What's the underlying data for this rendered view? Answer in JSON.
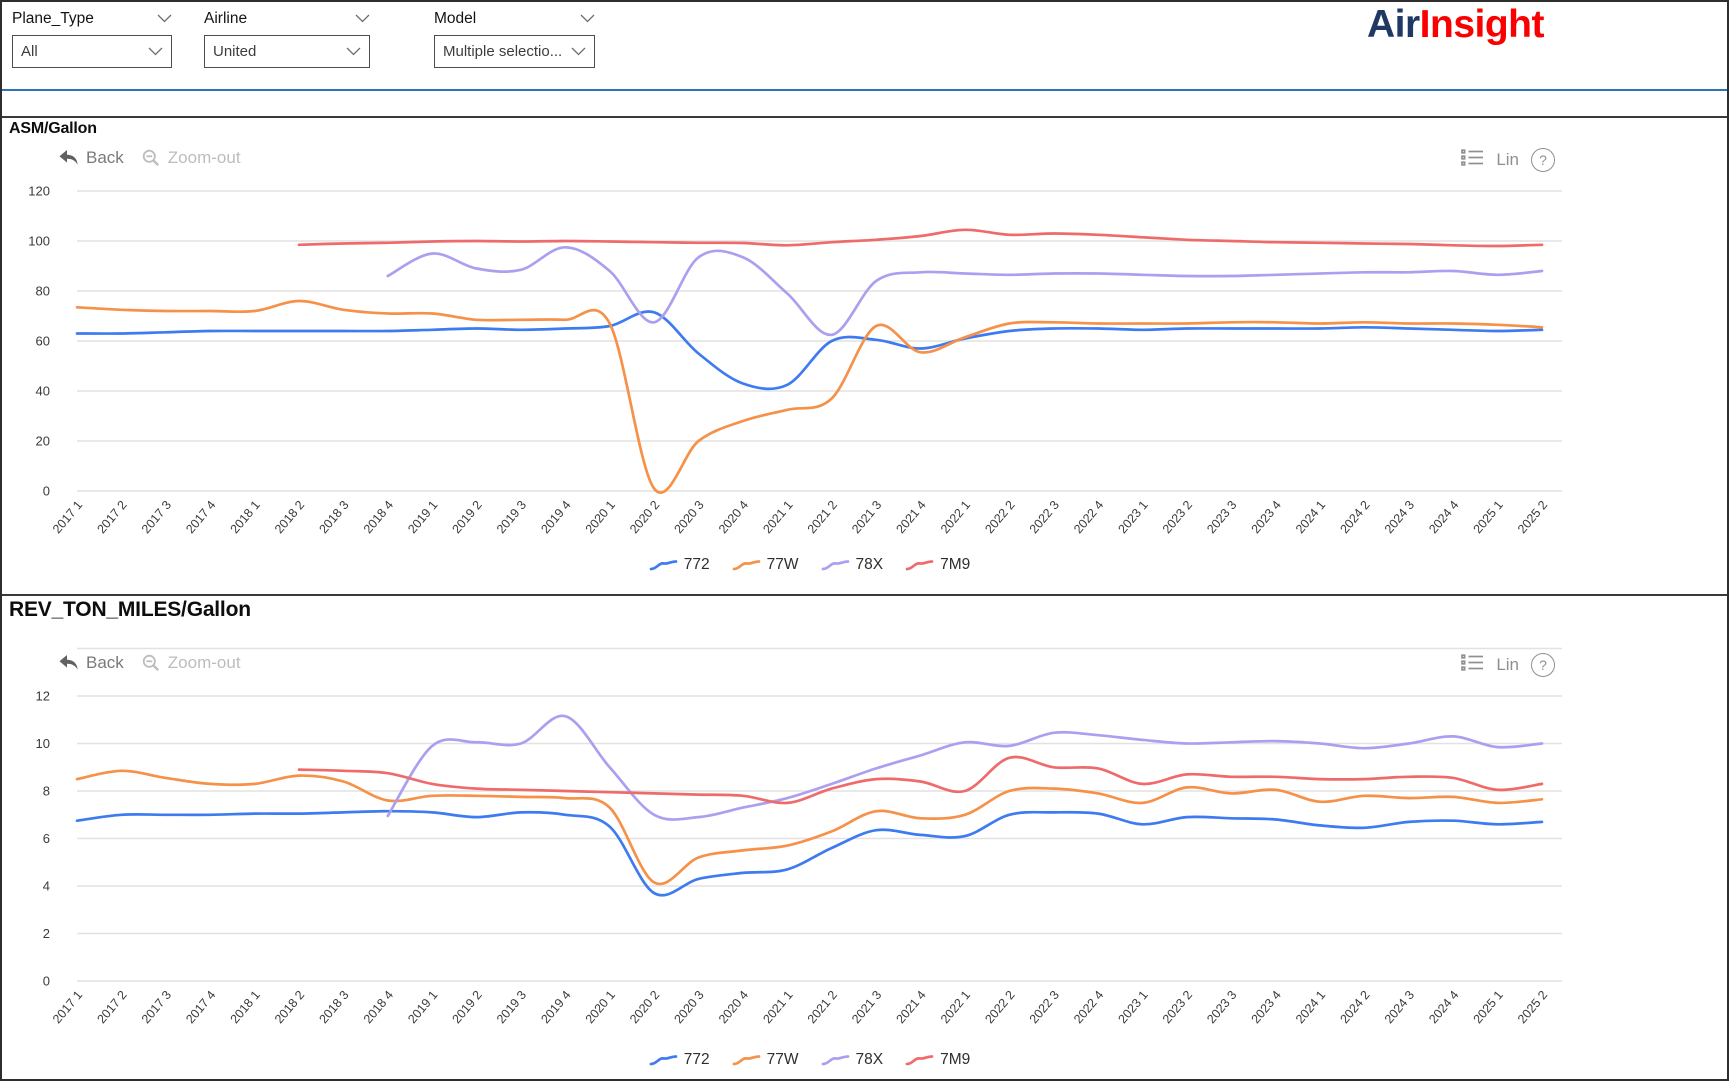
{
  "brand": {
    "logo_part1": "Air",
    "logo_part2": "Insight",
    "logo_color1": "#1F3864",
    "logo_color2": "#FB0000",
    "divider_color": "#2E74B5"
  },
  "filters": [
    {
      "label": "Plane_Type",
      "value": "All"
    },
    {
      "label": "Airline",
      "value": "United"
    },
    {
      "label": "Model",
      "value": "Multiple selectio..."
    }
  ],
  "chart_toolbar": {
    "back": "Back",
    "zoom_out": "Zoom-out",
    "lin": "Lin",
    "help": "?"
  },
  "chart_data": [
    {
      "type": "line",
      "title": "ASM/Gallon",
      "xlabel": "",
      "ylabel": "",
      "ylim": [
        0,
        120
      ],
      "yticks": [
        0,
        20,
        40,
        60,
        80,
        100,
        120
      ],
      "grid": true,
      "legend_position": "bottom",
      "categories": [
        "2017 1",
        "2017 2",
        "2017 3",
        "2017 4",
        "2018 1",
        "2018 2",
        "2018 3",
        "2018 4",
        "2019 1",
        "2019 2",
        "2019 3",
        "2019 4",
        "2020 1",
        "2020 2",
        "2020 3",
        "2020 4",
        "2021 1",
        "2021 2",
        "2021 3",
        "2021 4",
        "2022 1",
        "2022 2",
        "2022 3",
        "2022 4",
        "2023 1",
        "2023 2",
        "2023 3",
        "2023 4",
        "2024 1",
        "2024 2",
        "2024 3",
        "2024 4",
        "2025 1",
        "2025 2"
      ],
      "series": [
        {
          "name": "772",
          "color": "#3e7bf0",
          "values": [
            63,
            63,
            63.5,
            64,
            64,
            64,
            64,
            64,
            64.5,
            65,
            64.5,
            65,
            66,
            71.5,
            55,
            43,
            42.5,
            60,
            60.5,
            57,
            61,
            64,
            65,
            65,
            64.5,
            65,
            65,
            65,
            65,
            65.5,
            65,
            64.5,
            64,
            64.5
          ]
        },
        {
          "name": "77W",
          "color": "#f59148",
          "values": [
            73.5,
            72.5,
            72,
            72,
            72,
            76,
            72.5,
            71,
            71,
            68.5,
            68.5,
            68.5,
            67,
            1,
            20,
            28,
            32.5,
            37,
            66,
            55.5,
            61.5,
            67,
            67.5,
            67,
            67,
            67,
            67.5,
            67.5,
            67,
            67.5,
            67,
            67,
            66.5,
            65.5
          ]
        },
        {
          "name": "78X",
          "color": "#aba0f0",
          "values": [
            null,
            null,
            null,
            null,
            null,
            null,
            null,
            86,
            95,
            89,
            88.5,
            97.5,
            88,
            67.5,
            93.5,
            93.5,
            79,
            62.5,
            84,
            87.5,
            87,
            86.5,
            87,
            87,
            86.5,
            86,
            86,
            86.5,
            87,
            87.5,
            87.5,
            88,
            86.5,
            88
          ]
        },
        {
          "name": "7M9",
          "color": "#ef6b6b",
          "values": [
            null,
            null,
            null,
            null,
            null,
            98.5,
            99,
            99.3,
            99.8,
            100,
            99.8,
            100,
            99.8,
            99.5,
            99.3,
            99.2,
            98.3,
            99.5,
            100.5,
            102,
            104.5,
            102.5,
            103,
            102.5,
            101.5,
            100.5,
            100,
            99.5,
            99.3,
            99,
            98.8,
            98.3,
            98,
            98.5
          ]
        }
      ]
    },
    {
      "type": "line",
      "title": "REV_TON_MILES/Gallon",
      "xlabel": "",
      "ylabel": "",
      "ylim": [
        0,
        12
      ],
      "yticks": [
        0,
        2,
        4,
        6,
        8,
        10,
        12
      ],
      "grid": true,
      "legend_position": "bottom",
      "categories": [
        "2017 1",
        "2017 2",
        "2017 3",
        "2017 4",
        "2018 1",
        "2018 2",
        "2018 3",
        "2018 4",
        "2019 1",
        "2019 2",
        "2019 3",
        "2019 4",
        "2020 1",
        "2020 2",
        "2020 3",
        "2020 4",
        "2021 1",
        "2021 2",
        "2021 3",
        "2021 4",
        "2022 1",
        "2022 2",
        "2022 3",
        "2022 4",
        "2023 1",
        "2023 2",
        "2023 3",
        "2023 4",
        "2024 1",
        "2024 2",
        "2024 3",
        "2024 4",
        "2025 1",
        "2025 2"
      ],
      "series": [
        {
          "name": "772",
          "color": "#3e7bf0",
          "values": [
            6.75,
            7,
            7,
            7,
            7.05,
            7.05,
            7.1,
            7.15,
            7.1,
            6.9,
            7.1,
            7,
            6.5,
            3.7,
            4.3,
            4.55,
            4.7,
            5.6,
            6.35,
            6.15,
            6.1,
            7,
            7.1,
            7.05,
            6.6,
            6.9,
            6.85,
            6.8,
            6.55,
            6.45,
            6.7,
            6.75,
            6.6,
            6.7
          ]
        },
        {
          "name": "77W",
          "color": "#f59148",
          "values": [
            8.5,
            8.85,
            8.55,
            8.3,
            8.3,
            8.65,
            8.4,
            7.6,
            7.8,
            7.8,
            7.75,
            7.7,
            7.3,
            4.15,
            5.2,
            5.5,
            5.7,
            6.3,
            7.15,
            6.85,
            7,
            8,
            8.1,
            7.9,
            7.5,
            8.15,
            7.9,
            8.05,
            7.55,
            7.8,
            7.7,
            7.75,
            7.5,
            7.65
          ]
        },
        {
          "name": "78X",
          "color": "#aba0f0",
          "values": [
            null,
            null,
            null,
            null,
            null,
            null,
            null,
            6.95,
            9.9,
            10.05,
            10,
            11.15,
            9,
            7,
            6.9,
            7.3,
            7.7,
            8.3,
            8.95,
            9.5,
            10.05,
            9.9,
            10.45,
            10.35,
            10.15,
            10,
            10.05,
            10.1,
            10,
            9.8,
            10,
            10.3,
            9.85,
            10
          ]
        },
        {
          "name": "7M9",
          "color": "#ef6b6b",
          "values": [
            null,
            null,
            null,
            null,
            null,
            8.9,
            8.85,
            8.75,
            8.3,
            8.1,
            8.05,
            8,
            7.95,
            7.9,
            7.85,
            7.8,
            7.5,
            8.1,
            8.5,
            8.4,
            8,
            9.4,
            9,
            8.95,
            8.3,
            8.7,
            8.6,
            8.6,
            8.5,
            8.5,
            8.6,
            8.55,
            8.05,
            8.3
          ]
        }
      ]
    }
  ]
}
